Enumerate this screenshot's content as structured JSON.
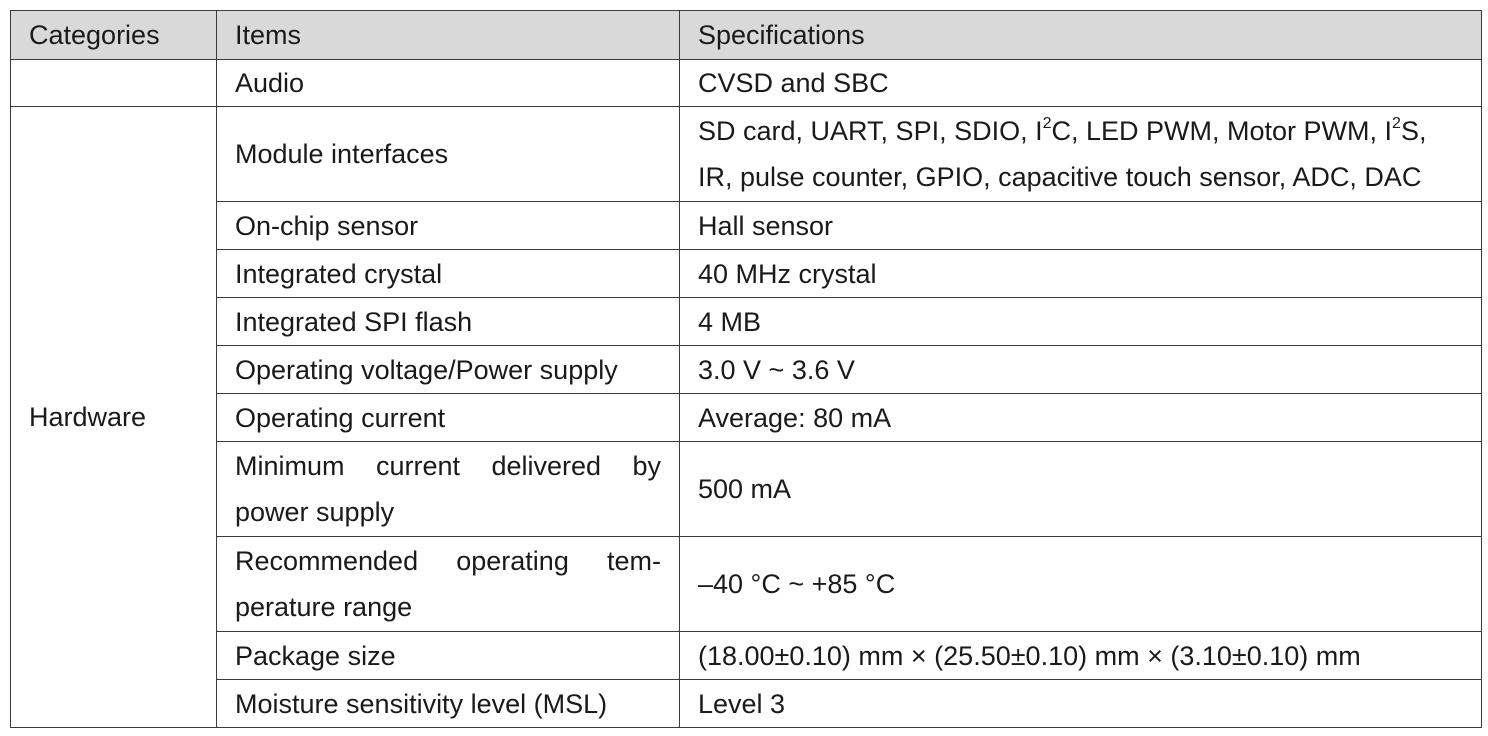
{
  "table": {
    "headers": {
      "categories": "Categories",
      "items": "Items",
      "specifications": "Specifications"
    },
    "rows": [
      {
        "category": "",
        "item": "Audio",
        "spec": "CVSD and SBC"
      },
      {
        "category": "Hardware",
        "item": "Module interfaces",
        "spec_line1_part1": "SD card, UART, SPI, SDIO, I",
        "spec_line1_sup1": "2",
        "spec_line1_part2": "C, LED PWM, Motor PWM, I",
        "spec_line1_sup2": "2",
        "spec_line1_part3": "S,",
        "spec_line2": "IR, pulse counter, GPIO, capacitive touch sensor, ADC, DAC"
      },
      {
        "item": "On-chip sensor",
        "spec": "Hall sensor"
      },
      {
        "item": "Integrated crystal",
        "spec": "40 MHz crystal"
      },
      {
        "item": "Integrated SPI flash",
        "spec": "4 MB"
      },
      {
        "item": "Operating voltage/Power supply",
        "spec": "3.0 V ~ 3.6 V"
      },
      {
        "item": "Operating current",
        "spec": "Average:  80 mA"
      },
      {
        "item": "Minimum current delivered by power supply",
        "spec": "500 mA"
      },
      {
        "item": "Recommended operating tem-perature range",
        "spec": "–40 °C ~ +85 °C"
      },
      {
        "item": "Package size",
        "spec": "(18.00±0.10) mm × (25.50±0.10) mm × (3.10±0.10) mm"
      },
      {
        "item": "Moisture sensitivity level (MSL)",
        "spec": "Level 3"
      }
    ]
  }
}
